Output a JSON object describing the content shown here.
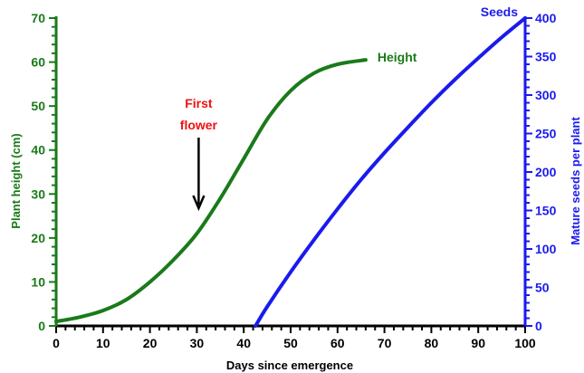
{
  "chart_data": {
    "type": "line",
    "xlabel": "Days since emergence",
    "ylabel_left": "Plant height (cm)",
    "ylabel_right": "Mature seeds per plant",
    "xlim": [
      0,
      100
    ],
    "ylim_left": [
      0,
      70
    ],
    "ylim_right": [
      0,
      400
    ],
    "x_ticks": [
      "0",
      "10",
      "20",
      "30",
      "40",
      "50",
      "60",
      "70",
      "80",
      "90",
      "100"
    ],
    "y_left_ticks": [
      "0",
      "10",
      "20",
      "30",
      "40",
      "50",
      "60",
      "70"
    ],
    "y_right_ticks": [
      "0",
      "50",
      "100",
      "150",
      "200",
      "250",
      "300",
      "350",
      "400"
    ],
    "grid": false,
    "series": [
      {
        "name": "Height",
        "axis": "left",
        "color": "#1a7a1a",
        "x": [
          0,
          5,
          10,
          15,
          20,
          25,
          30,
          35,
          40,
          45,
          50,
          55,
          60,
          66
        ],
        "y": [
          1,
          2,
          3.5,
          6,
          10,
          15,
          21,
          29,
          38,
          47,
          53.5,
          57.5,
          59.5,
          60.5
        ]
      },
      {
        "name": "Seeds",
        "axis": "right",
        "color": "#1a1aee",
        "x": [
          42.5,
          45,
          50,
          55,
          60,
          65,
          70,
          75,
          80,
          85,
          90,
          95,
          100
        ],
        "y": [
          0,
          25,
          70,
          112,
          152,
          190,
          225,
          258,
          290,
          320,
          348,
          375,
          400
        ]
      }
    ],
    "annotations": [
      {
        "text_line1": "First",
        "text_line2": "flower",
        "x": 30,
        "y_from": 40,
        "y_to": 25,
        "color": "#ee1111"
      }
    ]
  }
}
